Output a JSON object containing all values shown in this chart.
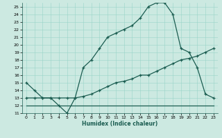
{
  "xlabel": "Humidex (Indice chaleur)",
  "bg_color": "#cce9e1",
  "grid_color": "#99d4c8",
  "line_color": "#1a5c50",
  "xlim": [
    -0.5,
    23.5
  ],
  "ylim": [
    11,
    25.5
  ],
  "xticks": [
    0,
    1,
    2,
    3,
    4,
    5,
    6,
    7,
    8,
    9,
    10,
    11,
    12,
    13,
    14,
    15,
    16,
    17,
    18,
    19,
    20,
    21,
    22,
    23
  ],
  "yticks": [
    11,
    12,
    13,
    14,
    15,
    16,
    17,
    18,
    19,
    20,
    21,
    22,
    23,
    24,
    25
  ],
  "line1_x": [
    0,
    1,
    2,
    3,
    4,
    5,
    6,
    7,
    8,
    9,
    10,
    11,
    12,
    13,
    14,
    15,
    16,
    17,
    18,
    19,
    20,
    21,
    22,
    23
  ],
  "line1_y": [
    15,
    14,
    13,
    13,
    12,
    11,
    13,
    17,
    18,
    19.5,
    21,
    21.5,
    22,
    22.5,
    23.5,
    25,
    25.5,
    25.5,
    24,
    19.5,
    19,
    17,
    13.5,
    13
  ],
  "line2_x": [
    0,
    1,
    2,
    3,
    4,
    5,
    6,
    7,
    8,
    9,
    10,
    11,
    12,
    13,
    14,
    15,
    16,
    17,
    18,
    19,
    20,
    21,
    22,
    23
  ],
  "line2_y": [
    13,
    13,
    13,
    13,
    13,
    13,
    13,
    13.2,
    13.5,
    14,
    14.5,
    15,
    15.2,
    15.5,
    16,
    16,
    16.5,
    17,
    17.5,
    18,
    18.2,
    18.5,
    19,
    19.5
  ],
  "line3_x": [
    0,
    23
  ],
  "line3_y": [
    12,
    12
  ]
}
